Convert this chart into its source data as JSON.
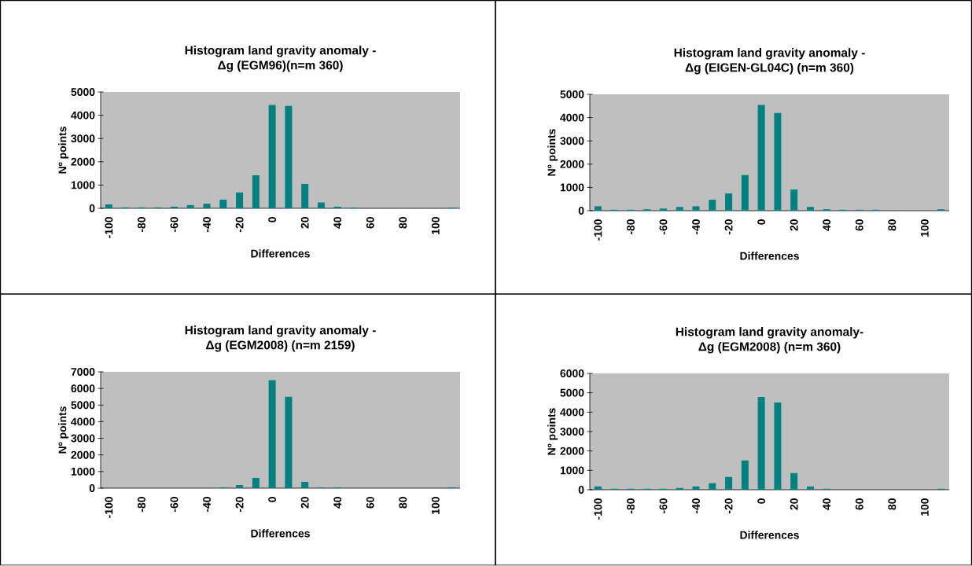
{
  "chart_data": [
    {
      "type": "bar",
      "title": "Histogram land gravity anomaly -",
      "subtitle": "Δg (EGM96)(n=m 360)",
      "xlabel": "Differences",
      "ylabel": "Nº points",
      "color": "#008080",
      "categories": [
        "-100",
        null,
        "-80",
        null,
        "-60",
        null,
        "-40",
        null,
        "-20",
        null,
        "0",
        null,
        "20",
        null,
        "40",
        null,
        "60",
        null,
        "80",
        null,
        "100",
        null
      ],
      "values": [
        170,
        40,
        40,
        40,
        70,
        140,
        200,
        370,
        680,
        1420,
        4440,
        4400,
        1050,
        250,
        70,
        30,
        0,
        0,
        0,
        0,
        0,
        30
      ],
      "ylim": [
        0,
        5000
      ],
      "yticks": [
        0,
        1000,
        2000,
        3000,
        4000,
        5000
      ],
      "grid": false
    },
    {
      "type": "bar",
      "title": "Histogram land gravity anomaly -",
      "subtitle": "Δg (EIGEN-GL04C) (n=m 360)",
      "xlabel": "Differences",
      "ylabel": "Nº points",
      "color": "#008080",
      "categories": [
        "-100",
        null,
        "-80",
        null,
        "-60",
        null,
        "-40",
        null,
        "-20",
        null,
        "0",
        null,
        "20",
        null,
        "40",
        null,
        "60",
        null,
        "80",
        null,
        "100",
        null
      ],
      "values": [
        190,
        40,
        40,
        60,
        90,
        160,
        190,
        470,
        740,
        1530,
        4540,
        4200,
        910,
        160,
        60,
        40,
        40,
        40,
        0,
        0,
        0,
        60
      ],
      "ylim": [
        0,
        5000
      ],
      "yticks": [
        0,
        1000,
        2000,
        3000,
        4000,
        5000
      ],
      "grid": false
    },
    {
      "type": "bar",
      "title": "Histogram land gravity anomaly -",
      "subtitle": "Δg (EGM2008) (n=m 2159)",
      "xlabel": "Differences",
      "ylabel": "Nº points",
      "color": "#008080",
      "categories": [
        "-100",
        null,
        "-80",
        null,
        "-60",
        null,
        "-40",
        null,
        "-20",
        null,
        "0",
        null,
        "20",
        null,
        "40",
        null,
        "60",
        null,
        "80",
        null,
        "100",
        null
      ],
      "values": [
        0,
        0,
        0,
        0,
        0,
        0,
        0,
        50,
        190,
        620,
        6490,
        5500,
        380,
        50,
        50,
        0,
        0,
        0,
        0,
        0,
        0,
        50
      ],
      "ylim": [
        0,
        7000
      ],
      "yticks": [
        0,
        1000,
        2000,
        3000,
        4000,
        5000,
        6000,
        7000
      ],
      "grid": false
    },
    {
      "type": "bar",
      "title": "Histogram land gravity anomaly-",
      "subtitle": "Δg (EGM2008) (n=m 360)",
      "xlabel": "Differences",
      "ylabel": "Nº points",
      "color": "#008080",
      "categories": [
        "-100",
        null,
        "-80",
        null,
        "-60",
        null,
        "-40",
        null,
        "-20",
        null,
        "0",
        null,
        "20",
        null,
        "40",
        null,
        "60",
        null,
        "80",
        null,
        "100",
        null
      ],
      "values": [
        170,
        50,
        50,
        50,
        50,
        90,
        170,
        340,
        660,
        1510,
        4780,
        4500,
        860,
        170,
        50,
        0,
        0,
        0,
        0,
        0,
        0,
        50
      ],
      "ylim": [
        0,
        6000
      ],
      "yticks": [
        0,
        1000,
        2000,
        3000,
        4000,
        5000,
        6000
      ],
      "grid": false
    }
  ]
}
